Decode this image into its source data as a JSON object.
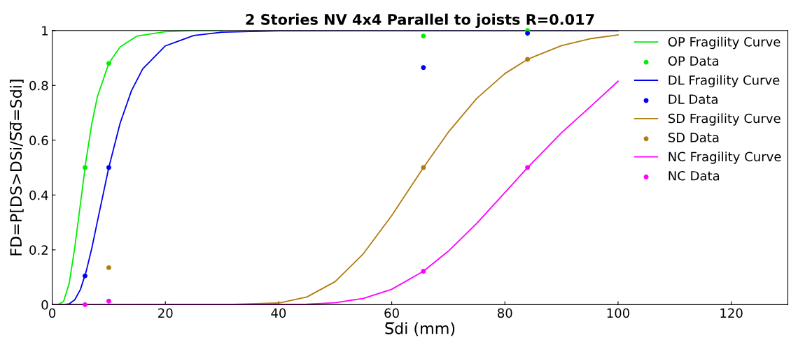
{
  "chart_data": {
    "type": "line",
    "title": "2 Stories NV 4x4 Parallel to joists R=0.017",
    "xlabel": "S̅di (mm)",
    "ylabel": "FD=P[DS>DSi/S̅d̅=Sdi]",
    "xlim": [
      0,
      130
    ],
    "xticks": [
      0,
      20,
      40,
      60,
      80,
      100,
      120
    ],
    "ylim": [
      0,
      1
    ],
    "yticks": [
      0,
      0.2,
      0.4,
      0.6,
      0.8,
      1
    ],
    "grid": false,
    "legend": "top right",
    "series": [
      {
        "name": "OP Fragility Curve",
        "type": "line",
        "color": "#00ee00",
        "x": [
          0,
          1,
          2,
          3,
          4,
          5,
          6,
          7,
          8,
          10,
          12,
          15,
          20,
          25,
          30
        ],
        "values": [
          0,
          0,
          0.011,
          0.077,
          0.21,
          0.37,
          0.53,
          0.66,
          0.76,
          0.88,
          0.94,
          0.98,
          0.996,
          1,
          1
        ]
      },
      {
        "name": "OP Data",
        "type": "scatter",
        "color": "#00ee00",
        "x": [
          5.8,
          10,
          65.6,
          84
        ],
        "values": [
          0.5,
          0.88,
          0.98,
          1.0
        ]
      },
      {
        "name": "DL Fragility Curve",
        "type": "line",
        "color": "#0000ee",
        "x": [
          0,
          2,
          3,
          4,
          5,
          6,
          7,
          8,
          10,
          12,
          14,
          16,
          20,
          25,
          30,
          40,
          60,
          100
        ],
        "values": [
          0,
          0,
          0.003,
          0.018,
          0.056,
          0.121,
          0.206,
          0.305,
          0.5,
          0.662,
          0.78,
          0.86,
          0.944,
          0.982,
          0.994,
          0.999,
          1,
          1
        ]
      },
      {
        "name": "DL Data",
        "type": "scatter",
        "color": "#0000ee",
        "x": [
          5.8,
          10,
          65.6,
          84
        ],
        "values": [
          0.105,
          0.5,
          0.865,
          0.99
        ]
      },
      {
        "name": "SD Fragility Curve",
        "type": "line",
        "color": "#b07d10",
        "x": [
          0,
          20,
          30,
          40,
          45,
          50,
          55,
          60,
          65.6,
          70,
          75,
          80,
          84,
          90,
          95,
          100
        ],
        "values": [
          0,
          0,
          0,
          0.006,
          0.028,
          0.084,
          0.186,
          0.325,
          0.5,
          0.629,
          0.752,
          0.843,
          0.895,
          0.945,
          0.97,
          0.984
        ]
      },
      {
        "name": "SD Data",
        "type": "scatter",
        "color": "#b07d10",
        "x": [
          10,
          65.6,
          84
        ],
        "values": [
          0.135,
          0.5,
          0.895
        ]
      },
      {
        "name": "NC Fragility Curve",
        "type": "line",
        "color": "#ff00ff",
        "x": [
          0,
          45,
          50,
          55,
          60,
          65.6,
          70,
          75,
          80,
          84,
          90,
          95,
          100
        ],
        "values": [
          0,
          0.002,
          0.007,
          0.023,
          0.056,
          0.122,
          0.195,
          0.296,
          0.409,
          0.5,
          0.627,
          0.72,
          0.815
        ]
      },
      {
        "name": "NC Data",
        "type": "scatter",
        "color": "#ff00ff",
        "x": [
          5.8,
          10,
          65.6,
          84
        ],
        "values": [
          0.0,
          0.013,
          0.122,
          0.5
        ]
      }
    ]
  }
}
